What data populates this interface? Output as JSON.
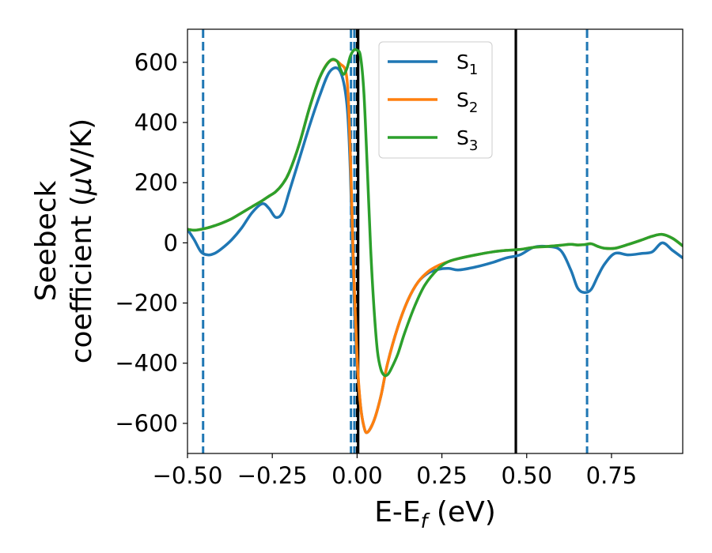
{
  "chart_data": {
    "type": "line",
    "xlabel": "E-E",
    "xlabel_sub": "f",
    "xlabel_unit": " (eV)",
    "ylabel_line1": "Seebeck",
    "ylabel_line2_pre": "coefficient  (",
    "ylabel_mu": "μ",
    "ylabel_line2_post": "V/K)",
    "xlim": [
      -0.5,
      0.96
    ],
    "ylim": [
      -700,
      710
    ],
    "x_ticks": [
      -0.5,
      -0.25,
      0.0,
      0.25,
      0.5,
      0.75
    ],
    "x_tick_labels": [
      "−0.50",
      "−0.25",
      "0.00",
      "0.25",
      "0.50",
      "0.75"
    ],
    "y_ticks": [
      600,
      400,
      200,
      0,
      -200,
      -400,
      -600
    ],
    "y_tick_labels": [
      "600",
      "400",
      "200",
      "0",
      "−200",
      "−400",
      "−600"
    ],
    "grid": false,
    "legend_position": "top-right",
    "series": [
      {
        "name": "S",
        "sub": "1",
        "color": "#1f77b4",
        "x": [
          -0.5,
          -0.48,
          -0.46,
          -0.44,
          -0.42,
          -0.4,
          -0.37,
          -0.34,
          -0.31,
          -0.28,
          -0.26,
          -0.24,
          -0.22,
          -0.2,
          -0.17,
          -0.14,
          -0.11,
          -0.08,
          -0.05,
          -0.03,
          -0.02,
          -0.01,
          0.0,
          0.01,
          0.02,
          0.03,
          0.05,
          0.07,
          0.09,
          0.12,
          0.15,
          0.18,
          0.21,
          0.24,
          0.27,
          0.3,
          0.35,
          0.4,
          0.44,
          0.48,
          0.52,
          0.56,
          0.6,
          0.63,
          0.65,
          0.67,
          0.69,
          0.71,
          0.73,
          0.76,
          0.8,
          0.84,
          0.87,
          0.9,
          0.93,
          0.96
        ],
        "y": [
          45,
          10,
          -30,
          -40,
          -35,
          -20,
          10,
          50,
          100,
          130,
          115,
          85,
          100,
          170,
          280,
          390,
          490,
          570,
          570,
          460,
          240,
          -150,
          -400,
          -540,
          -610,
          -630,
          -590,
          -510,
          -400,
          -280,
          -190,
          -130,
          -100,
          -88,
          -85,
          -90,
          -80,
          -65,
          -50,
          -40,
          -15,
          -12,
          -25,
          -90,
          -150,
          -165,
          -155,
          -110,
          -70,
          -35,
          -40,
          -35,
          -30,
          0,
          -25,
          -50
        ]
      },
      {
        "name": "S",
        "sub": "2",
        "color": "#ff7f0e",
        "x": [
          -0.5,
          -0.48,
          -0.46,
          -0.44,
          -0.42,
          -0.4,
          -0.37,
          -0.34,
          -0.31,
          -0.28,
          -0.26,
          -0.24,
          -0.22,
          -0.2,
          -0.17,
          -0.14,
          -0.11,
          -0.08,
          -0.05,
          -0.03,
          -0.02,
          -0.01,
          0.0,
          0.01,
          0.02,
          0.03,
          0.05,
          0.07,
          0.09,
          0.12,
          0.15,
          0.18,
          0.21,
          0.24,
          0.27,
          0.3,
          0.35,
          0.4,
          0.44,
          0.48,
          0.52,
          0.56,
          0.6,
          0.63,
          0.65,
          0.67,
          0.69,
          0.71,
          0.73,
          0.76,
          0.8,
          0.84,
          0.87,
          0.9,
          0.93,
          0.96
        ],
        "y": [
          45,
          42,
          45,
          50,
          57,
          65,
          80,
          100,
          120,
          140,
          155,
          170,
          195,
          235,
          330,
          450,
          550,
          605,
          595,
          545,
          300,
          -100,
          -380,
          -540,
          -610,
          -630,
          -590,
          -510,
          -400,
          -280,
          -190,
          -130,
          -95,
          -75,
          -62,
          -52,
          -40,
          -30,
          -25,
          -22,
          -15,
          -12,
          -8,
          -5,
          -7,
          -6,
          -3,
          -12,
          -18,
          -18,
          -5,
          10,
          22,
          28,
          15,
          -10
        ]
      },
      {
        "name": "S",
        "sub": "3",
        "color": "#2ca02c",
        "x": [
          -0.5,
          -0.48,
          -0.46,
          -0.44,
          -0.42,
          -0.4,
          -0.37,
          -0.34,
          -0.31,
          -0.28,
          -0.26,
          -0.24,
          -0.22,
          -0.2,
          -0.17,
          -0.14,
          -0.11,
          -0.08,
          -0.06,
          -0.05,
          -0.04,
          -0.03,
          -0.02,
          -0.01,
          0.0,
          0.01,
          0.02,
          0.03,
          0.04,
          0.05,
          0.06,
          0.07,
          0.08,
          0.09,
          0.1,
          0.12,
          0.14,
          0.17,
          0.2,
          0.24,
          0.27,
          0.3,
          0.35,
          0.4,
          0.44,
          0.48,
          0.52,
          0.56,
          0.6,
          0.63,
          0.65,
          0.67,
          0.69,
          0.71,
          0.73,
          0.76,
          0.8,
          0.84,
          0.87,
          0.9,
          0.93,
          0.96
        ],
        "y": [
          45,
          42,
          45,
          50,
          57,
          65,
          80,
          100,
          120,
          140,
          155,
          170,
          195,
          235,
          330,
          450,
          550,
          605,
          605,
          580,
          560,
          580,
          620,
          640,
          640,
          620,
          500,
          250,
          -20,
          -220,
          -360,
          -420,
          -440,
          -438,
          -420,
          -370,
          -300,
          -210,
          -140,
          -85,
          -62,
          -52,
          -40,
          -30,
          -25,
          -22,
          -15,
          -12,
          -8,
          -5,
          -7,
          -6,
          -3,
          -12,
          -18,
          -18,
          -5,
          10,
          22,
          28,
          15,
          -10
        ]
      }
    ],
    "vlines": [
      {
        "x": -0.454,
        "color": "#1f77b4",
        "style": "dashed"
      },
      {
        "x": -0.018,
        "color": "#1f77b4",
        "style": "dashed"
      },
      {
        "x": -0.008,
        "color": "#1f77b4",
        "style": "dashed"
      },
      {
        "x": 0.0,
        "color": "#000000",
        "style": "dashed"
      },
      {
        "x": 0.003,
        "color": "#000000",
        "style": "solid"
      },
      {
        "x": 0.468,
        "color": "#000000",
        "style": "solid"
      },
      {
        "x": 0.678,
        "color": "#1f77b4",
        "style": "dashed"
      }
    ]
  }
}
